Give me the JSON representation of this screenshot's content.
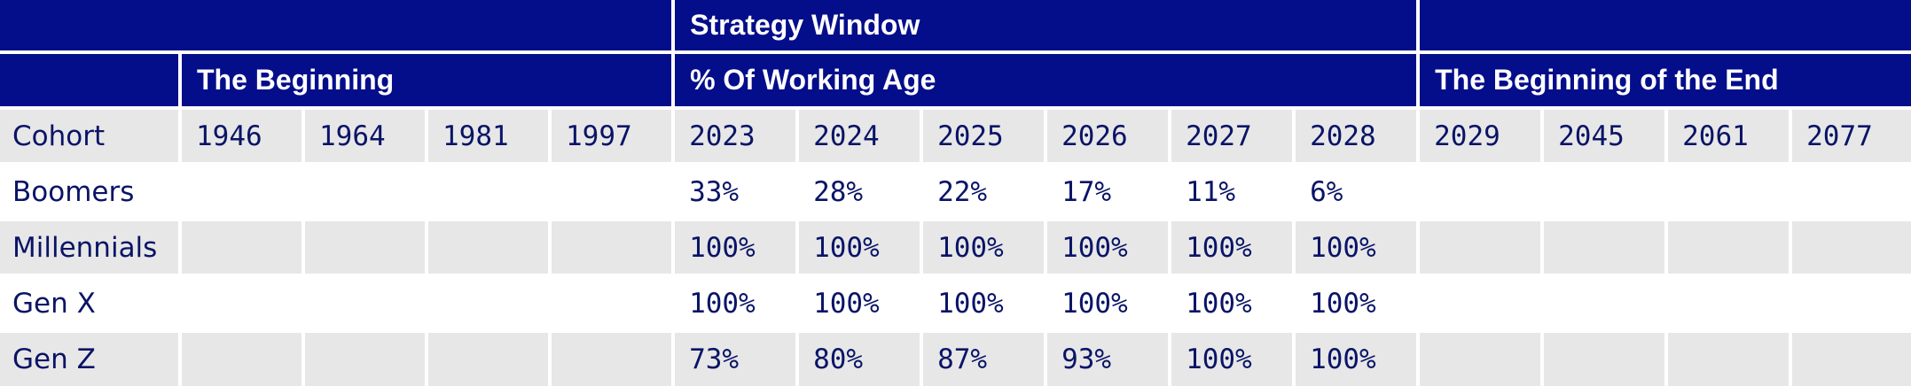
{
  "colors": {
    "header_bg": "#050e8a",
    "header_text": "#ffffff",
    "row_gray": "#e7e7e7",
    "row_white": "#ffffff",
    "body_text": "#0a1466"
  },
  "header": {
    "group_strategy": "Strategy Window",
    "group_beginning": "The Beginning",
    "group_working_age": "% Of Working Age",
    "group_end": "The Beginning of the End"
  },
  "chart_data": {
    "type": "table",
    "row_header": "Cohort",
    "columns": [
      "1946",
      "1964",
      "1981",
      "1997",
      "2023",
      "2024",
      "2025",
      "2026",
      "2027",
      "2028",
      "2029",
      "2045",
      "2061",
      "2077"
    ],
    "rows": [
      {
        "label": "Boomers",
        "cells": [
          "",
          "",
          "",
          "",
          "33%",
          "28%",
          "22%",
          "17%",
          "11%",
          "6%",
          "",
          "",
          "",
          ""
        ]
      },
      {
        "label": "Millennials",
        "cells": [
          "",
          "",
          "",
          "",
          "100%",
          "100%",
          "100%",
          "100%",
          "100%",
          "100%",
          "",
          "",
          "",
          ""
        ]
      },
      {
        "label": "Gen X",
        "cells": [
          "",
          "",
          "",
          "",
          "100%",
          "100%",
          "100%",
          "100%",
          "100%",
          "100%",
          "",
          "",
          "",
          ""
        ]
      },
      {
        "label": "Gen Z",
        "cells": [
          "",
          "",
          "",
          "",
          "73%",
          "80%",
          "87%",
          "93%",
          "100%",
          "100%",
          "",
          "",
          "",
          ""
        ]
      }
    ]
  }
}
